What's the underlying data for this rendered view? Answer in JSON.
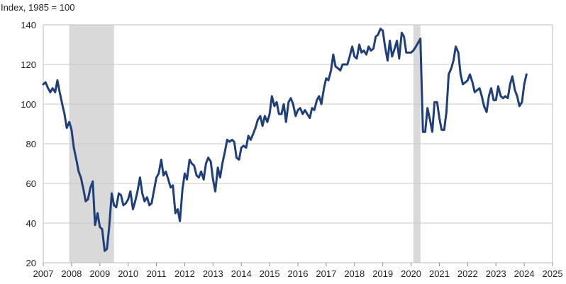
{
  "chart_data": {
    "type": "line",
    "title": "",
    "ylabel": "Index, 1985 = 100",
    "xlabel": "",
    "xlim": [
      2007.0,
      2025.0
    ],
    "ylim": [
      20,
      140
    ],
    "yticks": [
      20,
      40,
      60,
      80,
      100,
      120,
      140
    ],
    "xticks": [
      "2007",
      "2008",
      "2009",
      "2010",
      "2011",
      "2012",
      "2013",
      "2014",
      "2015",
      "2016",
      "2017",
      "2018",
      "2019",
      "2020",
      "2021",
      "2022",
      "2023",
      "2024",
      "2025"
    ],
    "grid": "horizontal",
    "legend": "none",
    "line_color": "#1f3f7a",
    "recession_color": "#d9d9d9",
    "recessions": [
      [
        2007.917,
        2009.5
      ],
      [
        2020.083,
        2020.333
      ]
    ],
    "series": [
      {
        "values": [
          [
            2007.0,
            110
          ],
          [
            2007.08,
            111
          ],
          [
            2007.17,
            108
          ],
          [
            2007.25,
            106
          ],
          [
            2007.33,
            108
          ],
          [
            2007.42,
            106
          ],
          [
            2007.5,
            112
          ],
          [
            2007.58,
            106
          ],
          [
            2007.67,
            100
          ],
          [
            2007.75,
            95
          ],
          [
            2007.83,
            88
          ],
          [
            2007.92,
            91
          ],
          [
            2008.0,
            87
          ],
          [
            2008.08,
            78
          ],
          [
            2008.17,
            72
          ],
          [
            2008.25,
            66
          ],
          [
            2008.33,
            63
          ],
          [
            2008.42,
            57
          ],
          [
            2008.5,
            51
          ],
          [
            2008.58,
            52
          ],
          [
            2008.67,
            58
          ],
          [
            2008.75,
            61
          ],
          [
            2008.83,
            39
          ],
          [
            2008.92,
            45
          ],
          [
            2009.0,
            38
          ],
          [
            2009.08,
            37
          ],
          [
            2009.17,
            26
          ],
          [
            2009.25,
            27
          ],
          [
            2009.33,
            38
          ],
          [
            2009.42,
            55
          ],
          [
            2009.5,
            49
          ],
          [
            2009.58,
            48
          ],
          [
            2009.67,
            55
          ],
          [
            2009.75,
            54
          ],
          [
            2009.83,
            49
          ],
          [
            2009.92,
            50
          ],
          [
            2010.0,
            52
          ],
          [
            2010.08,
            56
          ],
          [
            2010.17,
            47
          ],
          [
            2010.25,
            51
          ],
          [
            2010.33,
            56
          ],
          [
            2010.42,
            63
          ],
          [
            2010.5,
            55
          ],
          [
            2010.58,
            51
          ],
          [
            2010.67,
            53
          ],
          [
            2010.75,
            49
          ],
          [
            2010.83,
            50
          ],
          [
            2010.92,
            57
          ],
          [
            2011.0,
            63
          ],
          [
            2011.08,
            65
          ],
          [
            2011.17,
            72
          ],
          [
            2011.25,
            64
          ],
          [
            2011.33,
            66
          ],
          [
            2011.42,
            62
          ],
          [
            2011.5,
            58
          ],
          [
            2011.58,
            59
          ],
          [
            2011.67,
            45
          ],
          [
            2011.75,
            47
          ],
          [
            2011.83,
            41
          ],
          [
            2011.92,
            57
          ],
          [
            2012.0,
            65
          ],
          [
            2012.08,
            62
          ],
          [
            2012.17,
            72
          ],
          [
            2012.25,
            70
          ],
          [
            2012.33,
            69
          ],
          [
            2012.42,
            64
          ],
          [
            2012.5,
            63
          ],
          [
            2012.58,
            66
          ],
          [
            2012.67,
            62
          ],
          [
            2012.75,
            70
          ],
          [
            2012.83,
            73
          ],
          [
            2012.92,
            71
          ],
          [
            2013.0,
            62
          ],
          [
            2013.08,
            56
          ],
          [
            2013.17,
            68
          ],
          [
            2013.25,
            63
          ],
          [
            2013.33,
            70
          ],
          [
            2013.42,
            76
          ],
          [
            2013.5,
            82
          ],
          [
            2013.58,
            81
          ],
          [
            2013.67,
            82
          ],
          [
            2013.75,
            81
          ],
          [
            2013.83,
            73
          ],
          [
            2013.92,
            72
          ],
          [
            2014.0,
            78
          ],
          [
            2014.08,
            79
          ],
          [
            2014.17,
            78
          ],
          [
            2014.25,
            84
          ],
          [
            2014.33,
            82
          ],
          [
            2014.42,
            85
          ],
          [
            2014.5,
            88
          ],
          [
            2014.58,
            92
          ],
          [
            2014.67,
            94
          ],
          [
            2014.75,
            89
          ],
          [
            2014.83,
            94
          ],
          [
            2014.92,
            91
          ],
          [
            2015.0,
            95
          ],
          [
            2015.08,
            104
          ],
          [
            2015.17,
            99
          ],
          [
            2015.25,
            101
          ],
          [
            2015.33,
            95
          ],
          [
            2015.42,
            95
          ],
          [
            2015.5,
            100
          ],
          [
            2015.58,
            91
          ],
          [
            2015.67,
            101
          ],
          [
            2015.75,
            103
          ],
          [
            2015.83,
            100
          ],
          [
            2015.92,
            94
          ],
          [
            2016.0,
            97
          ],
          [
            2016.08,
            98
          ],
          [
            2016.17,
            95
          ],
          [
            2016.25,
            97
          ],
          [
            2016.33,
            95
          ],
          [
            2016.42,
            93
          ],
          [
            2016.5,
            98
          ],
          [
            2016.58,
            97
          ],
          [
            2016.67,
            102
          ],
          [
            2016.75,
            104
          ],
          [
            2016.83,
            100
          ],
          [
            2016.92,
            108
          ],
          [
            2017.0,
            113
          ],
          [
            2017.08,
            112
          ],
          [
            2017.17,
            117
          ],
          [
            2017.25,
            125
          ],
          [
            2017.33,
            119
          ],
          [
            2017.42,
            118
          ],
          [
            2017.5,
            117
          ],
          [
            2017.58,
            120
          ],
          [
            2017.67,
            120
          ],
          [
            2017.75,
            120
          ],
          [
            2017.83,
            124
          ],
          [
            2017.92,
            129
          ],
          [
            2018.0,
            124
          ],
          [
            2018.08,
            123
          ],
          [
            2018.17,
            130
          ],
          [
            2018.25,
            126
          ],
          [
            2018.33,
            127
          ],
          [
            2018.42,
            125
          ],
          [
            2018.5,
            129
          ],
          [
            2018.58,
            127
          ],
          [
            2018.67,
            128
          ],
          [
            2018.75,
            134
          ],
          [
            2018.83,
            135
          ],
          [
            2018.92,
            138
          ],
          [
            2019.0,
            137
          ],
          [
            2019.08,
            129
          ],
          [
            2019.17,
            122
          ],
          [
            2019.25,
            132
          ],
          [
            2019.33,
            124
          ],
          [
            2019.42,
            128
          ],
          [
            2019.5,
            132
          ],
          [
            2019.58,
            123
          ],
          [
            2019.67,
            136
          ],
          [
            2019.75,
            134
          ],
          [
            2019.83,
            126
          ],
          [
            2019.92,
            126
          ],
          [
            2020.0,
            126
          ],
          [
            2020.08,
            127
          ],
          [
            2020.17,
            129
          ],
          [
            2020.25,
            131
          ],
          [
            2020.33,
            133
          ],
          [
            2020.42,
            86
          ],
          [
            2020.5,
            86
          ],
          [
            2020.58,
            98
          ],
          [
            2020.67,
            92
          ],
          [
            2020.75,
            86
          ],
          [
            2020.83,
            101
          ],
          [
            2020.92,
            101
          ],
          [
            2021.0,
            93
          ],
          [
            2021.08,
            87
          ],
          [
            2021.17,
            87
          ],
          [
            2021.25,
            96
          ],
          [
            2021.33,
            115
          ],
          [
            2021.42,
            118
          ],
          [
            2021.5,
            122
          ],
          [
            2021.58,
            129
          ],
          [
            2021.67,
            126
          ],
          [
            2021.75,
            115
          ],
          [
            2021.83,
            110
          ],
          [
            2021.92,
            111
          ],
          [
            2022.0,
            112
          ],
          [
            2022.08,
            115
          ],
          [
            2022.17,
            111
          ],
          [
            2022.25,
            106
          ],
          [
            2022.33,
            107
          ],
          [
            2022.42,
            108
          ],
          [
            2022.5,
            104
          ],
          [
            2022.58,
            99
          ],
          [
            2022.67,
            96
          ],
          [
            2022.75,
            104
          ],
          [
            2022.83,
            108
          ],
          [
            2022.92,
            102
          ],
          [
            2023.0,
            102
          ],
          [
            2023.08,
            109
          ],
          [
            2023.17,
            104
          ],
          [
            2023.25,
            103
          ],
          [
            2023.33,
            104
          ],
          [
            2023.42,
            103
          ],
          [
            2023.5,
            110
          ],
          [
            2023.58,
            114
          ],
          [
            2023.67,
            107
          ],
          [
            2023.75,
            104
          ],
          [
            2023.83,
            99
          ],
          [
            2023.92,
            101
          ],
          [
            2024.0,
            110
          ],
          [
            2024.08,
            115
          ]
        ]
      }
    ]
  }
}
